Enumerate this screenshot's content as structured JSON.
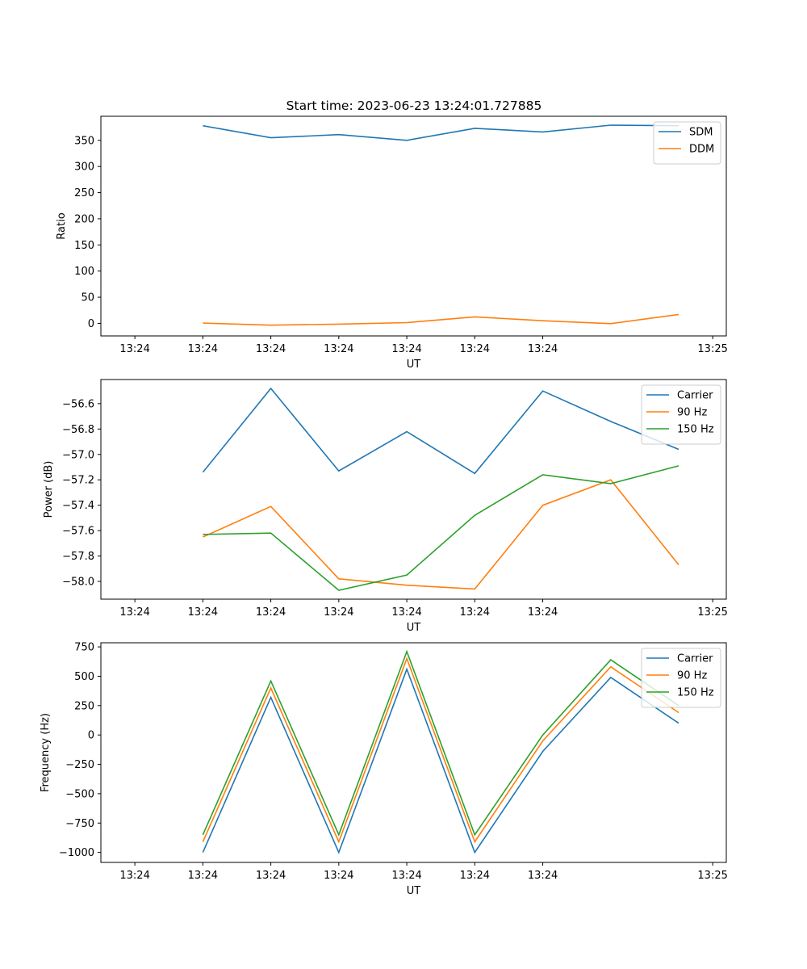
{
  "title": "Start time: 2023-06-23 13:24:01.727885",
  "chart_data": [
    {
      "type": "line",
      "title": "",
      "xlabel": "UT",
      "ylabel": "Ratio",
      "x_tick_labels": [
        "13:24",
        "13:24",
        "13:24",
        "13:24",
        "13:24",
        "13:24",
        "13:24",
        "13:25"
      ],
      "x": [
        1,
        2,
        3,
        4,
        5,
        6,
        7,
        8
      ],
      "xlim": [
        -0.5,
        8.7
      ],
      "ylim": [
        -24,
        396
      ],
      "yticks": [
        0,
        50,
        100,
        150,
        200,
        250,
        300,
        350
      ],
      "legend": "top-right",
      "grid": false,
      "series": [
        {
          "name": "SDM",
          "color": "#1f77b4",
          "values": [
            378,
            355,
            361,
            350,
            373,
            366,
            379,
            378
          ]
        },
        {
          "name": "DDM",
          "color": "#ff7f0e",
          "values": [
            0.5,
            -3.5,
            -1.5,
            1.5,
            12.5,
            5.0,
            -0.5,
            17.0
          ]
        }
      ]
    },
    {
      "type": "line",
      "title": "",
      "xlabel": "UT",
      "ylabel": "Power (dB)",
      "x_tick_labels": [
        "13:24",
        "13:24",
        "13:24",
        "13:24",
        "13:24",
        "13:24",
        "13:24",
        "13:25"
      ],
      "x": [
        1,
        2,
        3,
        4,
        5,
        6,
        7,
        8
      ],
      "xlim": [
        -0.5,
        8.7
      ],
      "ylim": [
        -58.14,
        -56.41
      ],
      "yticks": [
        -58.0,
        -57.8,
        -57.6,
        -57.4,
        -57.2,
        -57.0,
        -56.8,
        -56.6
      ],
      "legend": "top-right",
      "grid": false,
      "series": [
        {
          "name": "Carrier",
          "color": "#1f77b4",
          "values": [
            -57.14,
            -56.48,
            -57.13,
            -56.82,
            -57.15,
            -56.5,
            -56.74,
            -56.96
          ]
        },
        {
          "name": "90 Hz",
          "color": "#ff7f0e",
          "values": [
            -57.65,
            -57.41,
            -57.98,
            -58.03,
            -58.06,
            -57.4,
            -57.2,
            -57.87
          ]
        },
        {
          "name": "150 Hz",
          "color": "#2ca02c",
          "values": [
            -57.63,
            -57.62,
            -58.07,
            -57.95,
            -57.48,
            -57.16,
            -57.23,
            -57.09
          ]
        }
      ]
    },
    {
      "type": "line",
      "title": "",
      "xlabel": "UT",
      "ylabel": "Frequency (Hz)",
      "x_tick_labels": [
        "13:24",
        "13:24",
        "13:24",
        "13:24",
        "13:24",
        "13:24",
        "13:24",
        "13:25"
      ],
      "x": [
        1,
        2,
        3,
        4,
        5,
        6,
        7,
        8
      ],
      "xlim": [
        -0.5,
        8.7
      ],
      "ylim": [
        -1085,
        785
      ],
      "yticks": [
        -1000,
        -750,
        -500,
        -250,
        0,
        250,
        500,
        750
      ],
      "legend": "top-right",
      "grid": false,
      "series": [
        {
          "name": "Carrier",
          "color": "#1f77b4",
          "values": [
            -1000,
            320,
            -1000,
            560,
            -1000,
            -140,
            490,
            100
          ]
        },
        {
          "name": "90 Hz",
          "color": "#ff7f0e",
          "values": [
            -910,
            400,
            -910,
            650,
            -910,
            -50,
            580,
            190
          ]
        },
        {
          "name": "150 Hz",
          "color": "#2ca02c",
          "values": [
            -850,
            460,
            -850,
            710,
            -850,
            0,
            640,
            250
          ]
        }
      ]
    }
  ]
}
